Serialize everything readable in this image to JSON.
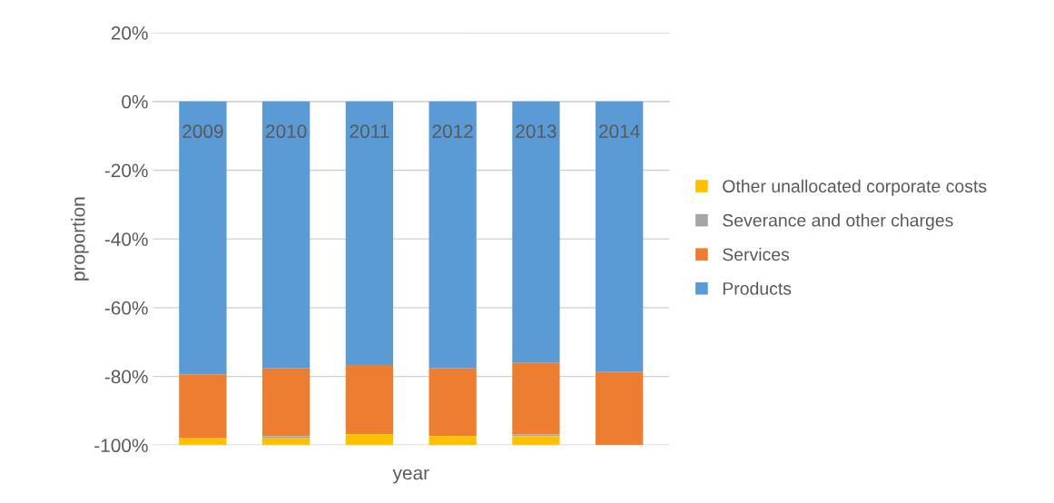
{
  "chart_data": {
    "type": "bar",
    "stacked": true,
    "xlabel": "year",
    "ylabel": "proportion",
    "categories": [
      "2009",
      "2010",
      "2011",
      "2012",
      "2013",
      "2014"
    ],
    "series": [
      {
        "name": "Products",
        "color": "#5b9bd5",
        "values": [
          -79.4,
          -77.7,
          -76.7,
          -77.7,
          -76.1,
          -78.7
        ]
      },
      {
        "name": "Services",
        "color": "#ed7d31",
        "values": [
          -18.6,
          -19.7,
          -20.1,
          -19.7,
          -20.7,
          -21.3
        ]
      },
      {
        "name": "Severance and other charges",
        "color": "#a5a5a5",
        "values": [
          0,
          -0.6,
          0,
          0,
          -0.6,
          0
        ]
      },
      {
        "name": "Other unallocated corporate costs",
        "color": "#ffc000",
        "values": [
          -2.0,
          -2.0,
          -3.2,
          -2.6,
          -2.6,
          0
        ]
      }
    ],
    "ylim": [
      -100,
      20
    ],
    "yticks": [
      {
        "value": 20,
        "label": "20%"
      },
      {
        "value": 0,
        "label": "0%"
      },
      {
        "value": -20,
        "label": "-20%"
      },
      {
        "value": -40,
        "label": "-40%"
      },
      {
        "value": -60,
        "label": "-60%"
      },
      {
        "value": -80,
        "label": "-80%"
      },
      {
        "value": -100,
        "label": "-100%"
      }
    ],
    "grid": "y",
    "legend": "right"
  }
}
